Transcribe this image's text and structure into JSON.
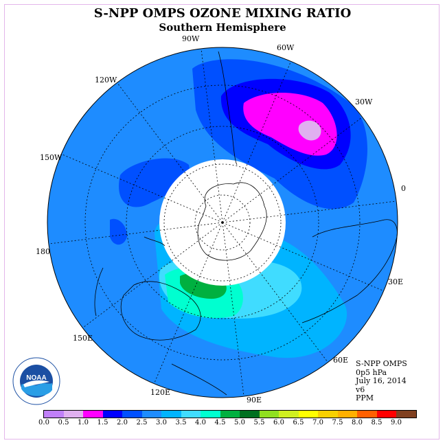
{
  "title": "S-NPP OMPS OZONE MIXING RATIO",
  "subtitle": "Southern Hemisphere",
  "info": {
    "instrument": "S-NPP OMPS",
    "pressure": "0p5 hPa",
    "date": "July 16, 2014",
    "version": "v6",
    "units": "PPM"
  },
  "longitude_labels": [
    "90W",
    "60W",
    "30W",
    "0",
    "30E",
    "60E",
    "90E",
    "120E",
    "150E",
    "180",
    "150W",
    "120W"
  ],
  "colorbar": {
    "ticks": [
      "0.0",
      "0.5",
      "1.0",
      "1.5",
      "2.0",
      "2.5",
      "3.0",
      "3.5",
      "4.0",
      "4.5",
      "5.0",
      "5.5",
      "6.0",
      "6.5",
      "7.0",
      "7.5",
      "8.0",
      "8.5",
      "9.0"
    ],
    "colors": [
      "#c080f8",
      "#e0b0f0",
      "#ff00ff",
      "#0000ff",
      "#0050ff",
      "#1e8cff",
      "#00b4ff",
      "#40dcff",
      "#00ffd0",
      "#00b040",
      "#007020",
      "#90e020",
      "#d0f020",
      "#ffff00",
      "#f8d000",
      "#ffb000",
      "#ff6000",
      "#ff0000",
      "#804020"
    ]
  },
  "logo": {
    "text": "NOAA"
  },
  "colors": {
    "background": "#1e8cff",
    "frame": "#e3b6ea"
  }
}
